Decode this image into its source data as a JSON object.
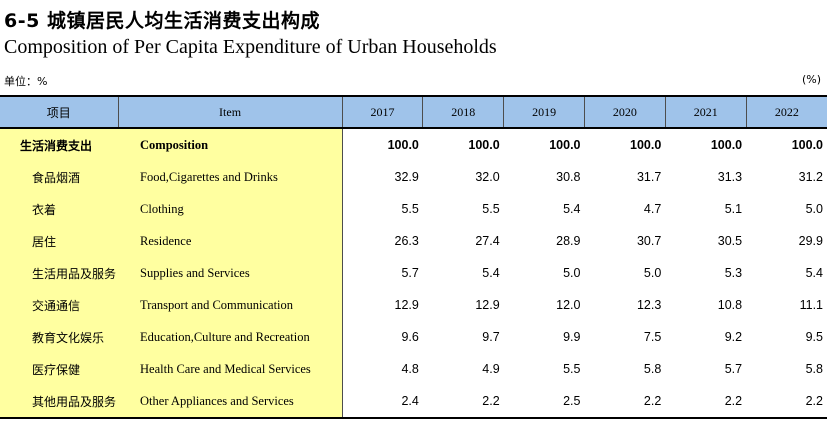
{
  "title_cn": "6-5 城镇居民人均生活消费支出构成",
  "title_en": "Composition of Per Capita Expenditure of Urban Households",
  "unit_label": "单位：%",
  "unit_right": "(%)",
  "header": {
    "cn": "项目",
    "en": "Item",
    "years": [
      "2017",
      "2018",
      "2019",
      "2020",
      "2021",
      "2022"
    ]
  },
  "rows": [
    {
      "cn": "生活消费支出",
      "en": "Composition",
      "bold": true,
      "values": [
        "100.0",
        "100.0",
        "100.0",
        "100.0",
        "100.0",
        "100.0"
      ]
    },
    {
      "cn": "食品烟酒",
      "en": "Food,Cigarettes and Drinks",
      "values": [
        "32.9",
        "32.0",
        "30.8",
        "31.7",
        "31.3",
        "31.2"
      ]
    },
    {
      "cn": "衣着",
      "en": "Clothing",
      "values": [
        "5.5",
        "5.5",
        "5.4",
        "4.7",
        "5.1",
        "5.0"
      ]
    },
    {
      "cn": "居住",
      "en": "Residence",
      "values": [
        "26.3",
        "27.4",
        "28.9",
        "30.7",
        "30.5",
        "29.9"
      ]
    },
    {
      "cn": "生活用品及服务",
      "en": "Supplies and Services",
      "values": [
        "5.7",
        "5.4",
        "5.0",
        "5.0",
        "5.3",
        "5.4"
      ]
    },
    {
      "cn": "交通通信",
      "en": "Transport and  Communication",
      "values": [
        "12.9",
        "12.9",
        "12.0",
        "12.3",
        "10.8",
        "11.1"
      ]
    },
    {
      "cn": "教育文化娱乐",
      "en": "Education,Culture and Recreation",
      "values": [
        "9.6",
        "9.7",
        "9.9",
        "7.5",
        "9.2",
        "9.5"
      ]
    },
    {
      "cn": "医疗保健",
      "en": "Health Care and Medical Services",
      "values": [
        "4.8",
        "4.9",
        "5.5",
        "5.8",
        "5.7",
        "5.8"
      ]
    },
    {
      "cn": "其他用品及服务",
      "en": "Other Appliances and Services",
      "values": [
        "2.4",
        "2.2",
        "2.5",
        "2.2",
        "2.2",
        "2.2"
      ]
    }
  ]
}
